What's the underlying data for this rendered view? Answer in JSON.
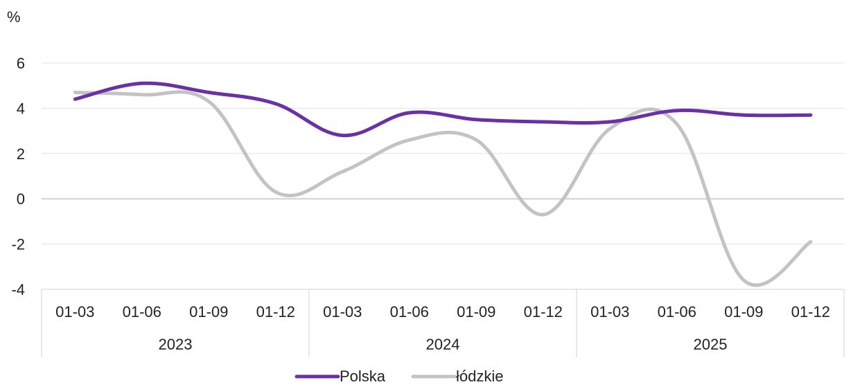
{
  "chart_data": {
    "type": "line",
    "title": "",
    "xlabel": "",
    "ylabel": "",
    "unit_label": "%",
    "ylim": [
      -4,
      6
    ],
    "yticks": [
      6,
      4,
      2,
      0,
      -2,
      -4
    ],
    "grid": true,
    "legend_position": "bottom-center",
    "categories": [
      "01-03",
      "01-06",
      "01-09",
      "01-12",
      "01-03",
      "01-06",
      "01-09",
      "01-12",
      "01-03",
      "01-06",
      "01-09",
      "01-12"
    ],
    "groups": [
      {
        "label": "2023",
        "start": 0,
        "end": 3
      },
      {
        "label": "2024",
        "start": 4,
        "end": 7
      },
      {
        "label": "2025",
        "start": 8,
        "end": 11
      }
    ],
    "series": [
      {
        "name": "Polska",
        "color": "#6b2fa6",
        "values": [
          4.4,
          5.1,
          4.7,
          4.2,
          2.8,
          3.8,
          3.5,
          3.4,
          3.4,
          3.9,
          3.7,
          3.7
        ]
      },
      {
        "name": "łódzkie",
        "color": "#c3c3c3",
        "values": [
          4.7,
          4.6,
          4.3,
          0.3,
          1.2,
          2.6,
          2.6,
          -0.7,
          3.1,
          3.3,
          -3.6,
          -1.9
        ]
      }
    ]
  }
}
